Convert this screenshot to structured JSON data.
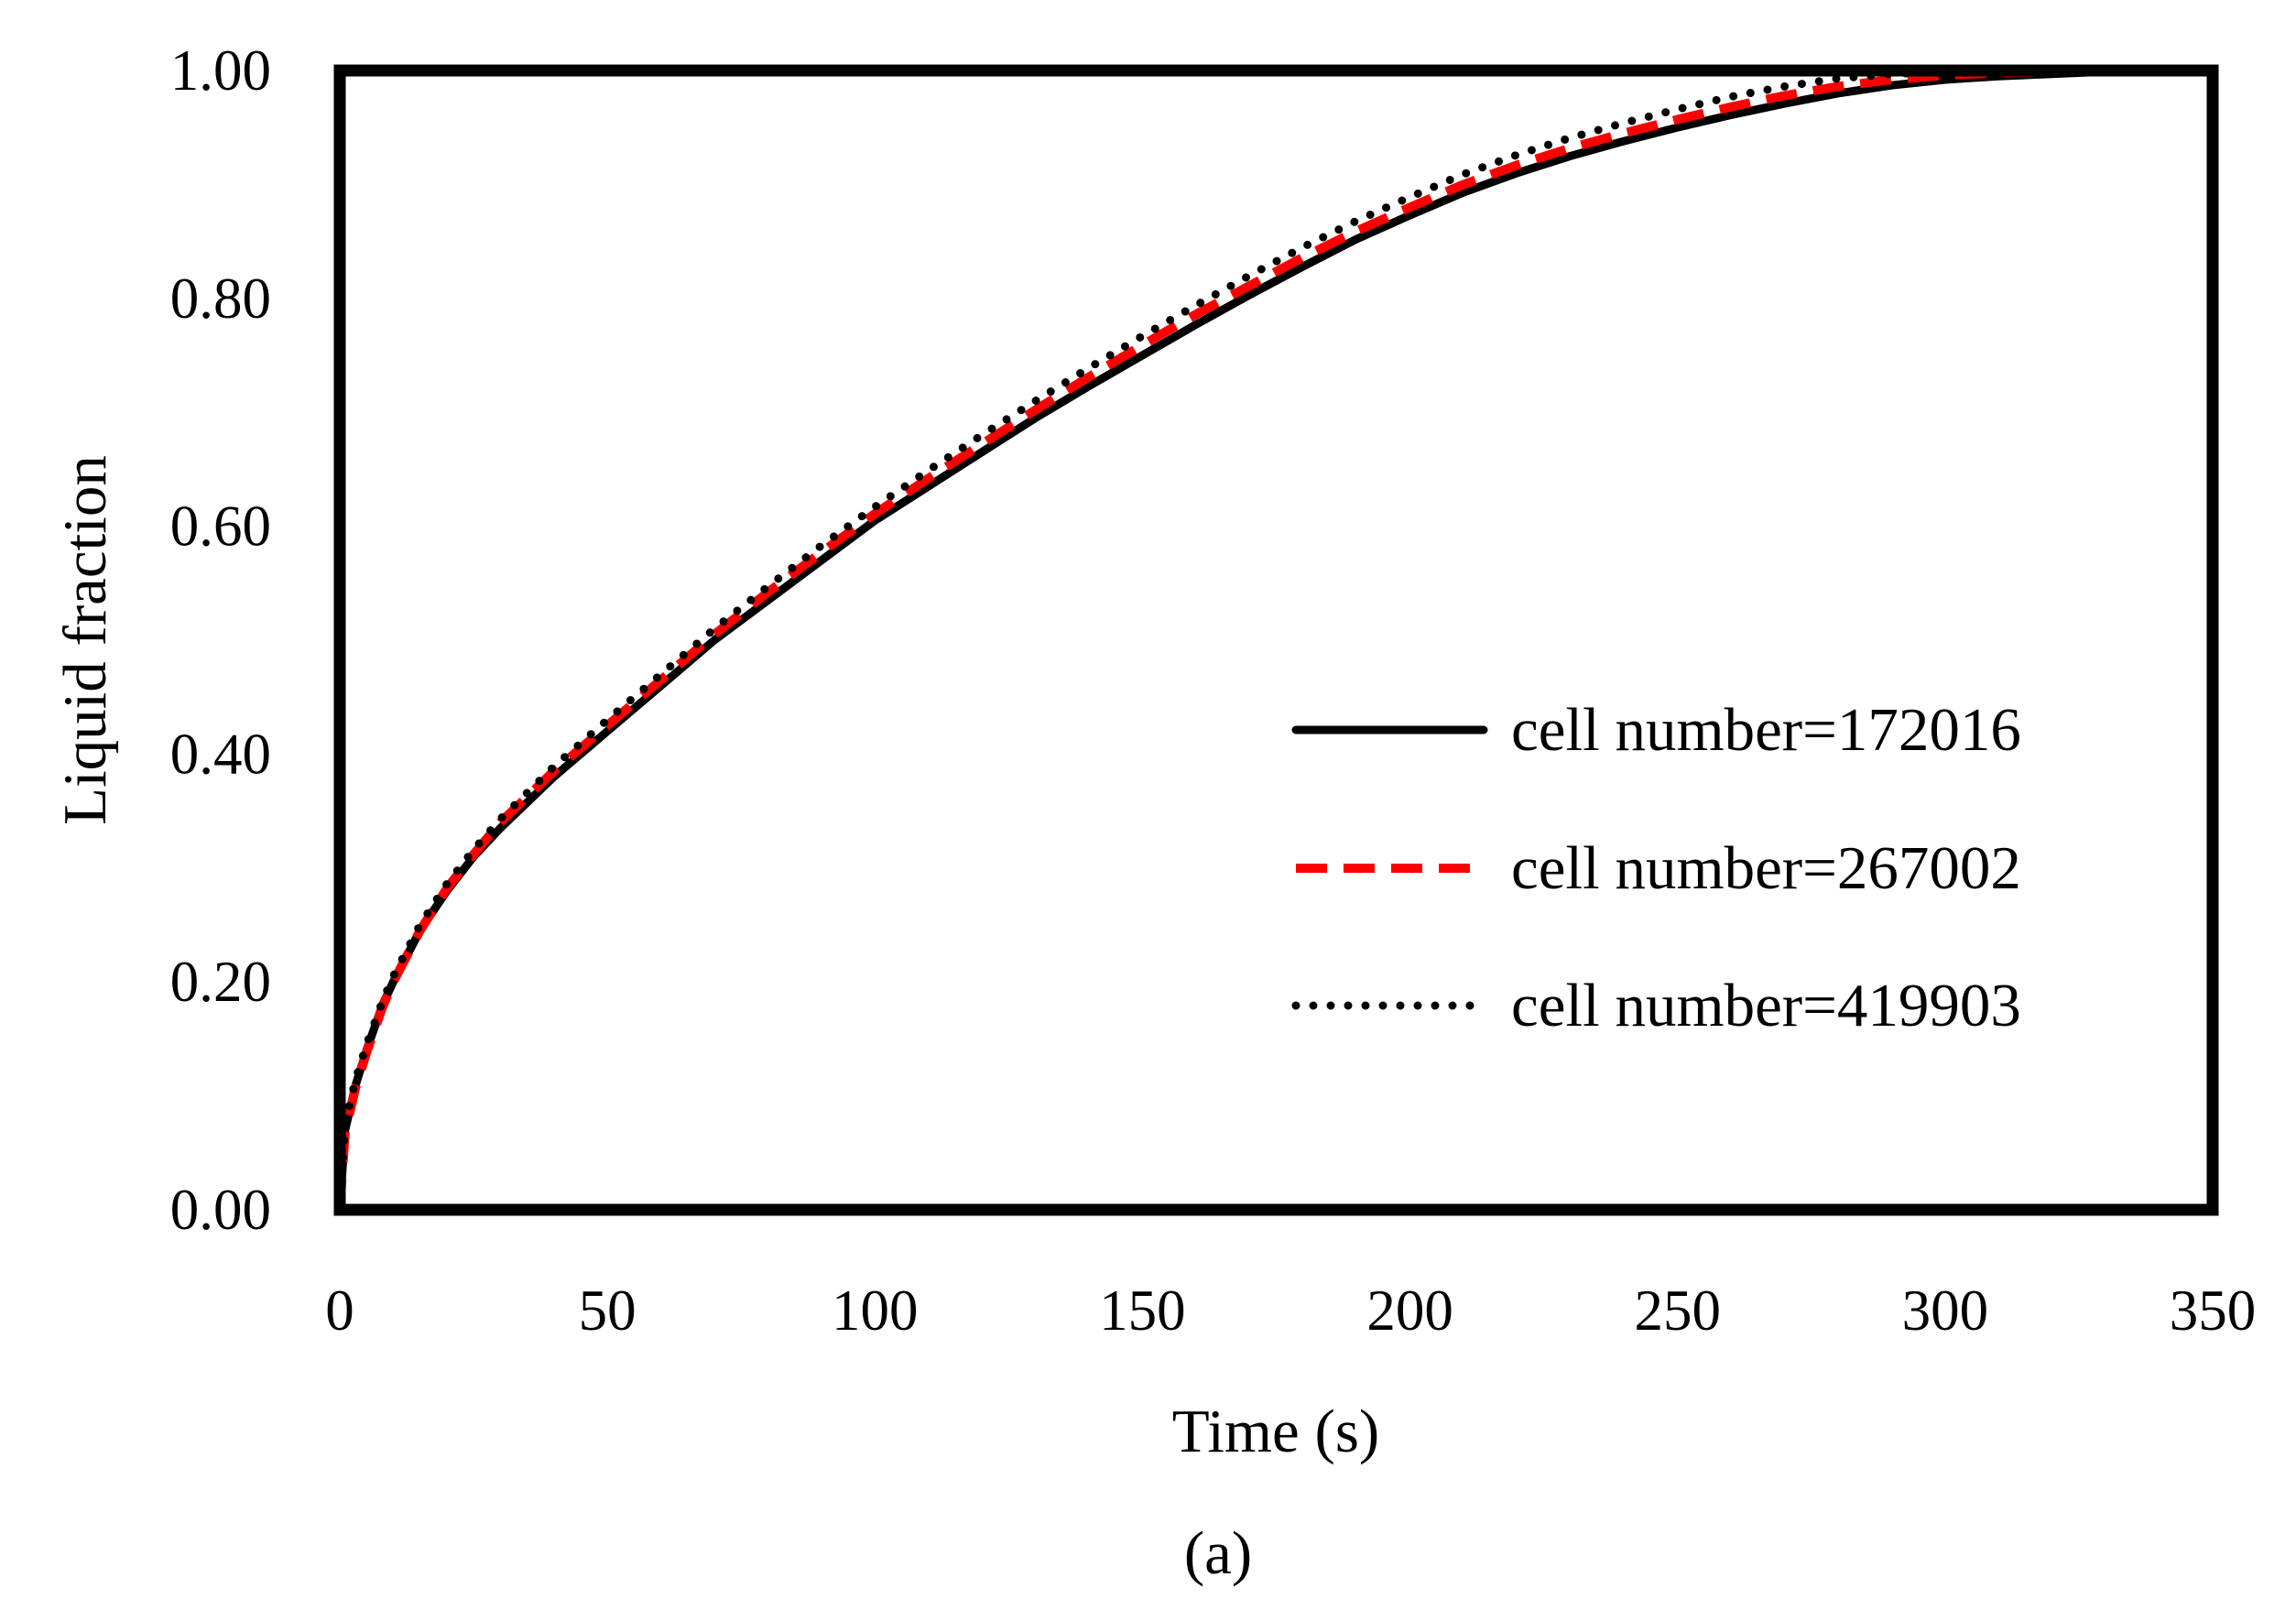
{
  "chart_data": {
    "type": "line",
    "title": "",
    "panel_label": "(a)",
    "xlabel": "Time (s)",
    "ylabel": "Liquid fraction",
    "xlim": [
      0,
      350
    ],
    "ylim": [
      0,
      1
    ],
    "x_ticks": [
      0,
      50,
      100,
      150,
      200,
      250,
      300,
      350
    ],
    "y_ticks": [
      0,
      0.2,
      0.4,
      0.6,
      0.8,
      1.0
    ],
    "x_tick_labels": [
      "0",
      "50",
      "100",
      "150",
      "200",
      "250",
      "300",
      "350"
    ],
    "y_tick_labels": [
      "0.00",
      "0.20",
      "0.40",
      "0.60",
      "0.80",
      "1.00"
    ],
    "grid": false,
    "legend_position": "center-right",
    "series": [
      {
        "name": "cell number=172016",
        "style": "solid",
        "color": "#000000",
        "x": [
          0,
          1,
          3,
          5,
          8,
          10,
          15,
          20,
          25,
          30,
          40,
          50,
          60,
          70,
          80,
          90,
          100,
          110,
          120,
          130,
          140,
          150,
          160,
          170,
          180,
          190,
          200,
          210,
          220,
          230,
          240,
          250,
          260,
          270,
          280,
          290,
          300,
          310,
          320,
          330,
          338
        ],
        "values": [
          0,
          0.07,
          0.11,
          0.14,
          0.18,
          0.2,
          0.245,
          0.28,
          0.31,
          0.335,
          0.38,
          0.42,
          0.46,
          0.5,
          0.535,
          0.57,
          0.605,
          0.635,
          0.665,
          0.695,
          0.723,
          0.75,
          0.777,
          0.803,
          0.828,
          0.852,
          0.873,
          0.893,
          0.91,
          0.925,
          0.938,
          0.95,
          0.961,
          0.971,
          0.98,
          0.987,
          0.992,
          0.995,
          0.997,
          0.999,
          1.0
        ]
      },
      {
        "name": "cell number=267002",
        "style": "dashed",
        "color": "#ff0000",
        "x": [
          0,
          1,
          3,
          5,
          8,
          10,
          15,
          20,
          25,
          30,
          40,
          50,
          60,
          70,
          80,
          90,
          100,
          110,
          120,
          130,
          140,
          150,
          160,
          170,
          180,
          190,
          200,
          210,
          220,
          230,
          240,
          250,
          260,
          270,
          280,
          290,
          300,
          310,
          320,
          330,
          338
        ],
        "values": [
          0,
          0.068,
          0.108,
          0.138,
          0.178,
          0.2,
          0.245,
          0.282,
          0.312,
          0.34,
          0.385,
          0.425,
          0.465,
          0.505,
          0.542,
          0.577,
          0.611,
          0.642,
          0.672,
          0.702,
          0.731,
          0.759,
          0.786,
          0.811,
          0.836,
          0.859,
          0.88,
          0.9,
          0.917,
          0.932,
          0.945,
          0.957,
          0.968,
          0.978,
          0.986,
          0.992,
          0.996,
          0.998,
          0.999,
          1.0,
          1.0
        ]
      },
      {
        "name": "cell number=419903",
        "style": "dotted",
        "color": "#000000",
        "x": [
          0,
          1,
          3,
          5,
          8,
          10,
          15,
          20,
          25,
          30,
          40,
          50,
          60,
          70,
          80,
          90,
          100,
          110,
          120,
          130,
          140,
          150,
          160,
          170,
          180,
          190,
          200,
          210,
          220,
          230,
          240,
          250,
          260,
          270,
          280,
          290,
          300,
          310,
          320,
          330,
          338
        ],
        "values": [
          0,
          0.075,
          0.115,
          0.145,
          0.183,
          0.205,
          0.25,
          0.286,
          0.316,
          0.343,
          0.389,
          0.43,
          0.47,
          0.51,
          0.547,
          0.583,
          0.617,
          0.649,
          0.68,
          0.71,
          0.739,
          0.767,
          0.794,
          0.82,
          0.845,
          0.868,
          0.889,
          0.909,
          0.926,
          0.941,
          0.954,
          0.966,
          0.977,
          0.986,
          0.993,
          0.997,
          0.999,
          1.0,
          1.0,
          1.0,
          1.0
        ]
      }
    ]
  }
}
